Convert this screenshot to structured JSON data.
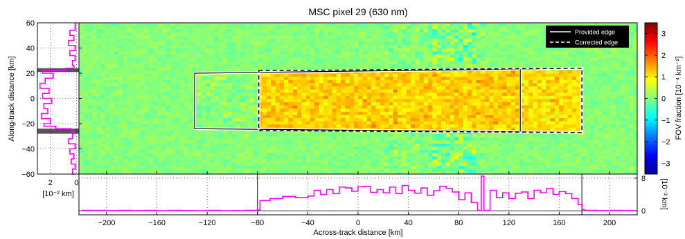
{
  "chart_data": {
    "type": "heatmap",
    "title": "MSC pixel 29 (630 nm)",
    "xlabel": "Across-track distance [km]",
    "ylabel": "Along-track distance [km]",
    "colorbar_label": "FOV fraction [10⁻⁴ km⁻²]",
    "colorbar_ticks": [
      "3",
      "2",
      "1",
      "0",
      "−1",
      "−2",
      "−3"
    ],
    "colorbar_values": [
      3,
      2,
      1,
      0,
      -1,
      -2,
      -3
    ],
    "clim": [
      -3.5,
      3.5
    ],
    "colormap": "jet",
    "xlim": [
      -222,
      222
    ],
    "ylim": [
      -60,
      60
    ],
    "xticks": [
      -200,
      -160,
      -120,
      -80,
      -40,
      0,
      40,
      80,
      120,
      160,
      200
    ],
    "xticklabels": [
      "−200",
      "−160",
      "−120",
      "−80",
      "−40",
      "0",
      "40",
      "80",
      "120",
      "160",
      "200"
    ],
    "yticks": [
      60,
      40,
      20,
      0,
      -20,
      -40,
      -60
    ],
    "yticklabels": [
      "60",
      "40",
      "20",
      "0",
      "−20",
      "−40",
      "−60"
    ],
    "legend": {
      "placement": "top-right",
      "entries": [
        {
          "label": "Provided edge",
          "style": "solid"
        },
        {
          "label": "Corrected edge",
          "style": "dashed"
        }
      ]
    },
    "provided_edge": {
      "outer": [
        [
          -130,
          20
        ],
        [
          178,
          24
        ],
        [
          178,
          -27
        ],
        [
          -130,
          -24
        ]
      ],
      "inner_dividers_x": [
        -79,
        129
      ]
    },
    "corrected_edge": [
      [
        -79,
        22
      ],
      [
        178,
        24
      ],
      [
        178,
        -27
      ],
      [
        -79,
        -25.5
      ]
    ],
    "heatmap_mean_regions": [
      {
        "x": [
          -79,
          129
        ],
        "y": [
          -25,
          22
        ],
        "mean": 1.2
      },
      {
        "x": [
          129,
          178
        ],
        "y": [
          -26,
          23
        ],
        "mean": 1.1
      },
      {
        "x": [
          -130,
          -79
        ],
        "y": [
          -24,
          20
        ],
        "mean": 0.1
      }
    ],
    "background_mean": 0.05,
    "bottom_panel": {
      "ylabel": "[10⁻³ km]",
      "yticks": [
        0,
        8
      ],
      "yticklabels": [
        "0",
        "8"
      ],
      "ylim": [
        -1,
        9
      ],
      "series_color": "#ff00ff",
      "x": [
        -220,
        -210,
        -200,
        -190,
        -180,
        -170,
        -160,
        -150,
        -140,
        -130,
        -120,
        -110,
        -100,
        -90,
        -80,
        -78,
        -70,
        -60,
        -50,
        -40,
        -35,
        -30,
        -25,
        -20,
        -15,
        -10,
        -5,
        0,
        5,
        10,
        15,
        20,
        25,
        30,
        35,
        40,
        45,
        50,
        55,
        60,
        65,
        70,
        75,
        80,
        85,
        90,
        95,
        98,
        100,
        105,
        110,
        115,
        120,
        125,
        130,
        135,
        140,
        145,
        150,
        155,
        160,
        165,
        170,
        175,
        178,
        180,
        190,
        200,
        210,
        220
      ],
      "values": [
        0.1,
        0.1,
        0.05,
        0.1,
        0.05,
        0.1,
        0.0,
        0.1,
        0.05,
        0.0,
        0.1,
        0.0,
        0.05,
        0.1,
        0.2,
        2.5,
        3.0,
        3.5,
        3.2,
        3.6,
        5.0,
        4.0,
        5.2,
        4.2,
        5.8,
        5.6,
        4.8,
        5.9,
        6.0,
        4.5,
        5.2,
        4.4,
        5.8,
        4.2,
        6.2,
        5.0,
        4.3,
        5.6,
        3.8,
        4.9,
        6.0,
        5.5,
        4.6,
        2.7,
        4.4,
        2.0,
        0.1,
        8.5,
        0.1,
        5.0,
        3.2,
        4.4,
        3.0,
        4.3,
        4.6,
        3.0,
        5.0,
        4.4,
        5.5,
        4.0,
        4.7,
        4.2,
        3.0,
        1.5,
        0.3,
        0.1,
        0.05,
        0.1,
        0.05,
        0.1
      ]
    },
    "left_panel": {
      "xlabel": "[10⁻² km]",
      "xticks": [
        2,
        0
      ],
      "xticklabels": [
        "2",
        "0"
      ],
      "xlim": [
        3,
        -0.2
      ],
      "series_color": "#ff00ff",
      "y": [
        60,
        54,
        50,
        46,
        42,
        38,
        34,
        30,
        26,
        24,
        22,
        20,
        16,
        12,
        8,
        4,
        0,
        -4,
        -8,
        -12,
        -16,
        -20,
        -22,
        -24,
        -26,
        -28,
        -32,
        -36,
        -40,
        -44,
        -48,
        -52,
        -56,
        -60
      ],
      "values": [
        0.1,
        0.5,
        0.2,
        0.6,
        0.1,
        0.5,
        0.1,
        0.3,
        0.2,
        0.8,
        2.6,
        1.8,
        2.4,
        2.8,
        2.1,
        2.6,
        1.9,
        2.5,
        2.2,
        2.7,
        2.0,
        2.5,
        1.6,
        0.4,
        0.2,
        0.3,
        0.6,
        0.1,
        0.5,
        0.2,
        0.4,
        0.1,
        0.3,
        0.1
      ],
      "gray_bands_y": [
        [
          21,
          24
        ],
        [
          -28,
          -24
        ]
      ]
    }
  }
}
